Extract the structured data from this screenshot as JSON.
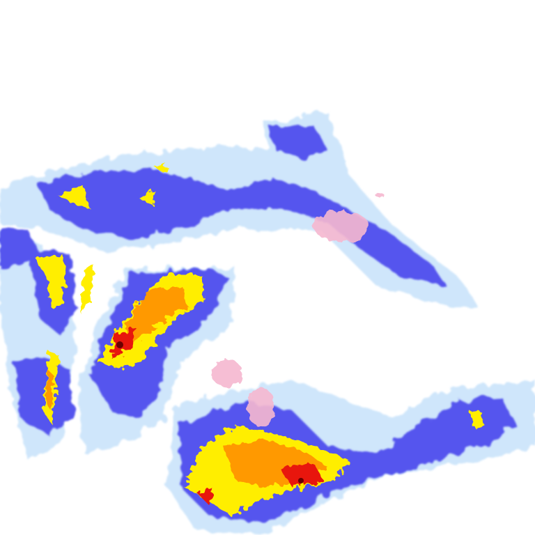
{
  "map": {
    "type": "precipitation radar tile",
    "colors": {
      "background": "#ffffff",
      "very_light": "#cfe6fb",
      "light": "#9ccbf4",
      "moderate": "#5555ee",
      "heavy": "#3b2bdc",
      "intense": "#ffee00",
      "very_intense": "#ff9900",
      "extreme": "#e8190c",
      "core": "#6a0000",
      "mixed": "#f6b8d0"
    }
  }
}
